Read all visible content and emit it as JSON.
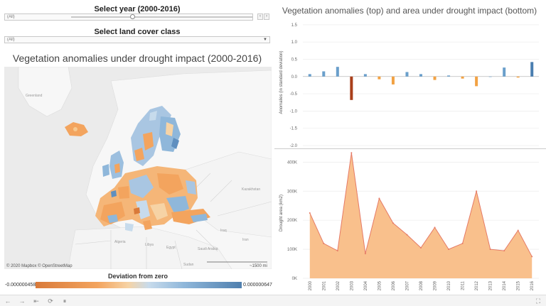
{
  "filters": {
    "year_title": "Select year (2000-2016)",
    "year_value": "(All)",
    "year_prev": "‹",
    "year_next": "›",
    "landcover_title": "Select land cover class",
    "landcover_value": "(All)"
  },
  "map": {
    "title": "Vegetation anomalies under drought impact (2000-2016)",
    "labels": {
      "greenland": "Greenland",
      "kazakhstan": "Kazakhstan",
      "iran": "Iran",
      "iraq": "Iraq",
      "libya": "Libya",
      "egypt": "Egypt",
      "algeria": "Algeria",
      "saudi_arabia": "Saudi Arabia",
      "sudan": "Sudan"
    },
    "attribution": "© 2020 Mapbox © OpenStreetMap",
    "scale": "~1500 mi",
    "legend_title": "Deviation from zero",
    "legend_min": "-0.000000458",
    "legend_max": "0.000000647"
  },
  "colors": {
    "positive_bar": "#6a9fcb",
    "negative_bar": "#f2a244",
    "strong_negative": "#a93f1a",
    "area_fill": "#f9c08c",
    "area_line": "#e57a66"
  },
  "chart_data": [
    {
      "type": "bar",
      "title": "Vegetation anomalies (top) and area under drought impact (bottom)",
      "ylabel": "Anomalies (in standard deviation)",
      "categories": [
        "2000",
        "2001",
        "2002",
        "2003",
        "2004",
        "2005",
        "2006",
        "2007",
        "2008",
        "2009",
        "2010",
        "2011",
        "2012",
        "2013",
        "2014",
        "2015",
        "2016"
      ],
      "values": [
        0.07,
        0.15,
        0.28,
        -0.68,
        0.07,
        -0.08,
        -0.23,
        0.13,
        0.07,
        -0.1,
        0.03,
        -0.06,
        -0.28,
        0.0,
        0.26,
        -0.03,
        0.42
      ],
      "yticks": [
        1.5,
        1.0,
        0.5,
        0.0,
        -0.5,
        -1.0,
        -1.5,
        -2.0
      ],
      "ytick_labels": [
        "1.5",
        "1.0",
        "0.5",
        "0.0",
        "-0.5",
        "-1.0",
        "-1.5",
        "-2.0"
      ],
      "ylim": [
        -2.0,
        1.6
      ]
    },
    {
      "type": "area",
      "ylabel": "Drought area (km2)",
      "x": [
        "2000",
        "2001",
        "2002",
        "2003",
        "2004",
        "2005",
        "2006",
        "2007",
        "2008",
        "2009",
        "2010",
        "2011",
        "2012",
        "2013",
        "2014",
        "2015",
        "2016"
      ],
      "values": [
        225000,
        120000,
        95000,
        432000,
        85000,
        275000,
        190000,
        150000,
        105000,
        175000,
        100000,
        120000,
        300000,
        100000,
        95000,
        165000,
        75000
      ],
      "yticks": [
        0,
        100000,
        200000,
        300000,
        400000
      ],
      "ytick_labels": [
        "0K",
        "100K",
        "200K",
        "300K",
        "400K"
      ],
      "ylim": [
        0,
        440000
      ]
    }
  ]
}
